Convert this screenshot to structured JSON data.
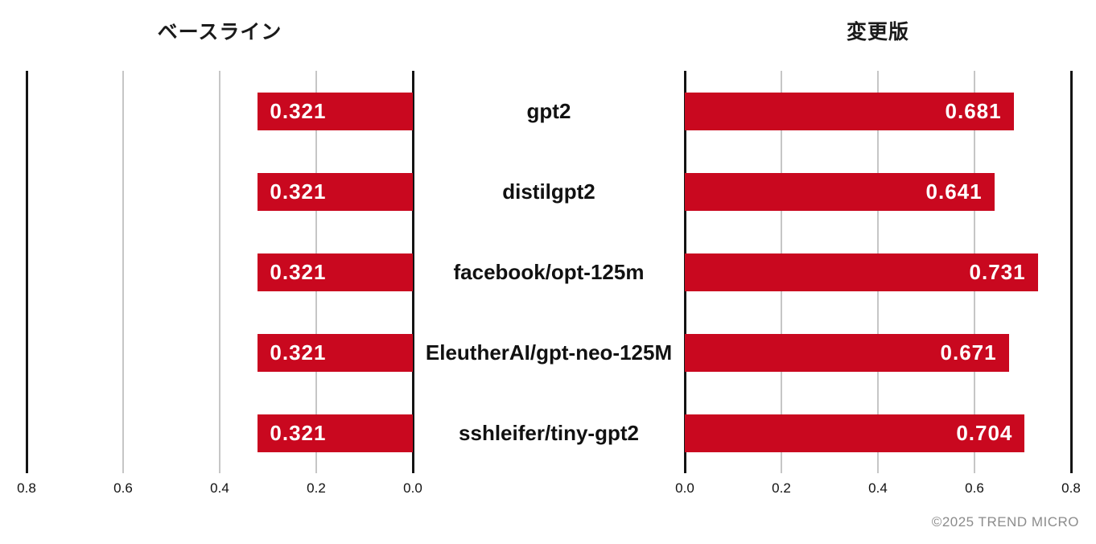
{
  "footer": {
    "copyright": "©2025 TREND MICRO"
  },
  "chart_data": {
    "type": "bar",
    "orientation": "horizontal",
    "layout": "back-to-back dual panel (tornado)",
    "categories": [
      "gpt2",
      "distilgpt2",
      "facebook/opt-125m",
      "EleutherAI/gpt-neo-125M",
      "sshleifer/tiny-gpt2"
    ],
    "series": [
      {
        "name": "ベースライン",
        "panel": "left",
        "axis_direction": "right-to-left",
        "values": [
          0.321,
          0.321,
          0.321,
          0.321,
          0.321
        ],
        "labels": [
          "0.321",
          "0.321",
          "0.321",
          "0.321",
          "0.321"
        ],
        "label_align": "inside-start"
      },
      {
        "name": "変更版",
        "panel": "right",
        "axis_direction": "left-to-right",
        "values": [
          0.681,
          0.641,
          0.731,
          0.671,
          0.704
        ],
        "labels": [
          "0.681",
          "0.641",
          "0.731",
          "0.671",
          "0.704"
        ],
        "label_align": "inside-end"
      }
    ],
    "axis": {
      "min": 0.0,
      "max": 0.8,
      "tick_step": 0.2,
      "left_panel_ticks": [
        "0.8",
        "0.6",
        "0.4",
        "0.2",
        "0.0"
      ],
      "right_panel_ticks": [
        "0.0",
        "0.2",
        "0.4",
        "0.6",
        "0.8"
      ]
    },
    "grid": true,
    "legend": false,
    "bar_color": "#c9081f",
    "bar_label_color": "#ffffff",
    "gridline_color": "#c6c6c6",
    "spine_color": "#141414"
  }
}
